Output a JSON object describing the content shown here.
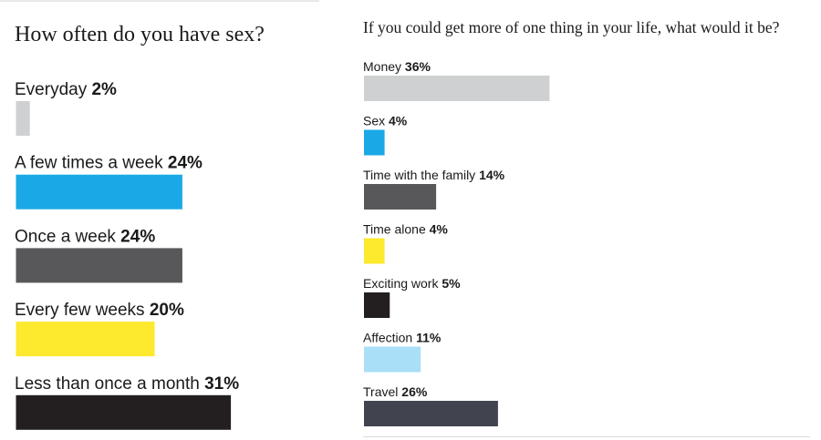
{
  "chart_data": [
    {
      "type": "bar",
      "orientation": "horizontal",
      "title": "How often do you have sex?",
      "categories": [
        "Everyday",
        "A few times a week",
        "Once a week",
        "Every few weeks",
        "Less than once a month"
      ],
      "values": [
        2,
        24,
        24,
        20,
        31
      ],
      "value_labels": [
        "2%",
        "24%",
        "24%",
        "20%",
        "31%"
      ],
      "colors": [
        "#cfd0d2",
        "#1aa9e6",
        "#58585b",
        "#fde92d",
        "#231f20"
      ],
      "unit": "%",
      "grid": false,
      "legend": "none",
      "labels_position": "above-bar"
    },
    {
      "type": "bar",
      "orientation": "horizontal",
      "title": "If you could get more of one thing in your life, what would it be?",
      "categories": [
        "Money",
        "Sex",
        "Time with the family",
        "Time alone",
        "Exciting work",
        "Affection",
        "Travel"
      ],
      "values": [
        36,
        4,
        14,
        4,
        5,
        11,
        26
      ],
      "value_labels": [
        "36%",
        "4%",
        "14%",
        "4%",
        "5%",
        "11%",
        "26%"
      ],
      "colors": [
        "#cfd0d2",
        "#1aa9e6",
        "#58585b",
        "#fde92d",
        "#231f20",
        "#a9dff7",
        "#41434f"
      ],
      "unit": "%",
      "grid": false,
      "legend": "none",
      "labels_position": "above-bar"
    }
  ]
}
